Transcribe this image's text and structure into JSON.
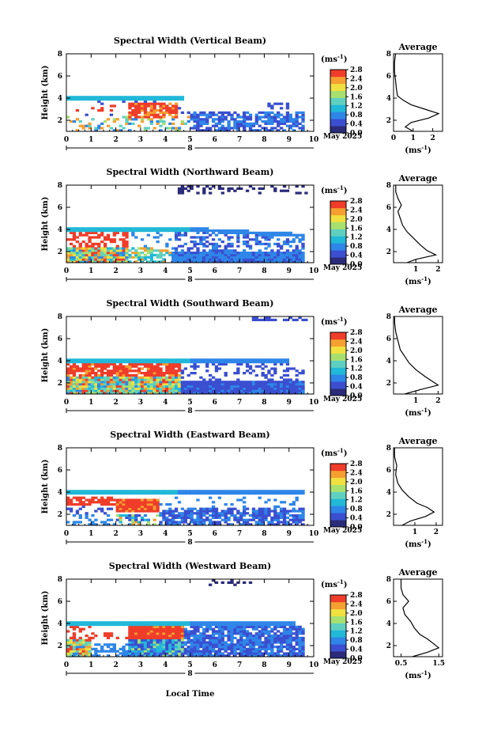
{
  "figure": {
    "xlabel": "Local Time",
    "date_label": "May 2025",
    "day_label": "8",
    "avg_title": "Average",
    "cb_unit": "(ms",
    "cb_unit_exp": "-1",
    "cb_unit_close": ")",
    "ylabel": "Height (km)",
    "colors": [
      "#ffffff",
      "#2b2b7a",
      "#3b4fd0",
      "#2e86e8",
      "#22b8d8",
      "#5fd0c0",
      "#a8e070",
      "#f0e040",
      "#f5a030",
      "#ef3d2a"
    ]
  },
  "chart_data": [
    {
      "type": "heatmap",
      "title": "Spectral Width (Vertical Beam)",
      "x_ticks": [
        "0",
        "1",
        "2",
        "3",
        "4",
        "5",
        "6",
        "7",
        "8",
        "9",
        "10"
      ],
      "y_ticks": [
        "2",
        "4",
        "6",
        "8"
      ],
      "xlim": [
        0,
        10
      ],
      "ylim": [
        1,
        8
      ],
      "colorbar_ticks": [
        "0.0",
        "0.4",
        "0.8",
        "1.2",
        "1.6",
        "2.0",
        "2.4",
        "2.8"
      ],
      "avg_y_ticks": [
        "2",
        "4",
        "6",
        "8"
      ],
      "avg_x_ticks": [
        "0",
        "1",
        "2"
      ],
      "avg_xlim": [
        0,
        2.5
      ],
      "avg_profile": [
        [
          1,
          1.0
        ],
        [
          1.4,
          0.6
        ],
        [
          1.8,
          0.9
        ],
        [
          2.2,
          1.8
        ],
        [
          2.6,
          2.3
        ],
        [
          3.0,
          1.6
        ],
        [
          3.4,
          0.9
        ],
        [
          3.8,
          0.5
        ],
        [
          4.2,
          0.2
        ],
        [
          4.8,
          0.15
        ],
        [
          5.6,
          0.1
        ],
        [
          6.4,
          0.05
        ],
        [
          7.2,
          0.05
        ],
        [
          8,
          0.1
        ]
      ]
    },
    {
      "type": "heatmap",
      "title": "Spectral Width (Northward Beam)",
      "x_ticks": [
        "0",
        "1",
        "2",
        "3",
        "4",
        "5",
        "6",
        "7",
        "8",
        "9",
        "10"
      ],
      "y_ticks": [
        "2",
        "4",
        "6",
        "8"
      ],
      "xlim": [
        0,
        10
      ],
      "ylim": [
        1,
        8
      ],
      "colorbar_ticks": [
        "0.0",
        "0.4",
        "0.8",
        "1.2",
        "1.6",
        "2.0",
        "2.4",
        "2.8"
      ],
      "avg_y_ticks": [
        "2",
        "4",
        "6",
        "8"
      ],
      "avg_x_ticks": [
        "1",
        "2"
      ],
      "avg_xlim": [
        0,
        2.2
      ],
      "avg_profile": [
        [
          1,
          0.6
        ],
        [
          1.3,
          1.0
        ],
        [
          1.7,
          1.9
        ],
        [
          2.1,
          1.5
        ],
        [
          2.6,
          1.2
        ],
        [
          3.2,
          0.9
        ],
        [
          3.8,
          0.6
        ],
        [
          4.4,
          0.4
        ],
        [
          5.0,
          0.3
        ],
        [
          5.6,
          0.2
        ],
        [
          6.2,
          0.35
        ],
        [
          6.8,
          0.2
        ],
        [
          7.4,
          0.1
        ],
        [
          8,
          0.1
        ]
      ]
    },
    {
      "type": "heatmap",
      "title": "Spectral Width (Southward Beam)",
      "x_ticks": [
        "0",
        "1",
        "2",
        "3",
        "4",
        "5",
        "6",
        "7",
        "8",
        "9",
        "10"
      ],
      "y_ticks": [
        "2",
        "4",
        "6",
        "8"
      ],
      "xlim": [
        0,
        10
      ],
      "ylim": [
        1,
        8
      ],
      "colorbar_ticks": [
        "0.0",
        "0.4",
        "0.8",
        "1.2",
        "1.6",
        "2.0",
        "2.4",
        "2.8"
      ],
      "avg_y_ticks": [
        "2",
        "4",
        "6",
        "8"
      ],
      "avg_x_ticks": [
        "1",
        "2"
      ],
      "avg_xlim": [
        0,
        2.2
      ],
      "avg_profile": [
        [
          1,
          0.5
        ],
        [
          1.4,
          1.2
        ],
        [
          1.8,
          2.0
        ],
        [
          2.2,
          1.7
        ],
        [
          2.6,
          1.4
        ],
        [
          3.2,
          1.0
        ],
        [
          3.8,
          0.7
        ],
        [
          4.4,
          0.5
        ],
        [
          5.0,
          0.3
        ],
        [
          5.8,
          0.2
        ],
        [
          6.6,
          0.1
        ],
        [
          7.4,
          0.05
        ],
        [
          8,
          0.05
        ]
      ]
    },
    {
      "type": "heatmap",
      "title": "Spectral Width (Eastward Beam)",
      "x_ticks": [
        "0",
        "1",
        "2",
        "3",
        "4",
        "5",
        "6",
        "7",
        "8",
        "9",
        "10"
      ],
      "y_ticks": [
        "2",
        "4",
        "6",
        "8"
      ],
      "xlim": [
        0,
        10
      ],
      "ylim": [
        1,
        8
      ],
      "colorbar_ticks": [
        "0.0",
        "0.4",
        "0.8",
        "1.2",
        "1.6",
        "2.0",
        "2.4",
        "2.8"
      ],
      "avg_y_ticks": [
        "2",
        "4",
        "6",
        "8"
      ],
      "avg_x_ticks": [
        "1",
        "2"
      ],
      "avg_xlim": [
        0,
        2.3
      ],
      "avg_profile": [
        [
          1,
          0.4
        ],
        [
          1.4,
          0.8
        ],
        [
          1.8,
          1.5
        ],
        [
          2.2,
          1.9
        ],
        [
          2.6,
          1.6
        ],
        [
          3.0,
          1.1
        ],
        [
          3.6,
          0.7
        ],
        [
          4.2,
          0.4
        ],
        [
          4.8,
          0.2
        ],
        [
          5.6,
          0.1
        ],
        [
          6.4,
          0.15
        ],
        [
          7.2,
          0.05
        ],
        [
          8,
          0.05
        ]
      ]
    },
    {
      "type": "heatmap",
      "title": "Spectral Width (Westward Beam)",
      "x_ticks": [
        "0",
        "1",
        "2",
        "3",
        "4",
        "5",
        "6",
        "7",
        "8",
        "9",
        "10"
      ],
      "y_ticks": [
        "2",
        "4",
        "6",
        "8"
      ],
      "xlim": [
        0,
        10
      ],
      "ylim": [
        1,
        8
      ],
      "colorbar_ticks": [
        "0.0",
        "0.4",
        "0.8",
        "1.2",
        "1.6",
        "2.0",
        "2.4",
        "2.8"
      ],
      "avg_y_ticks": [
        "2",
        "4",
        "6",
        "8"
      ],
      "avg_x_ticks": [
        "0.5",
        "1.5"
      ],
      "avg_xlim": [
        0.3,
        1.6
      ],
      "avg_profile": [
        [
          1,
          0.8
        ],
        [
          1.4,
          1.2
        ],
        [
          1.8,
          1.5
        ],
        [
          2.2,
          1.35
        ],
        [
          2.6,
          1.2
        ],
        [
          3.0,
          1.0
        ],
        [
          3.6,
          0.85
        ],
        [
          4.2,
          0.75
        ],
        [
          4.8,
          0.6
        ],
        [
          5.4,
          0.55
        ],
        [
          6.0,
          0.7
        ],
        [
          6.6,
          0.55
        ],
        [
          7.2,
          0.5
        ],
        [
          8,
          0.5
        ]
      ]
    }
  ]
}
